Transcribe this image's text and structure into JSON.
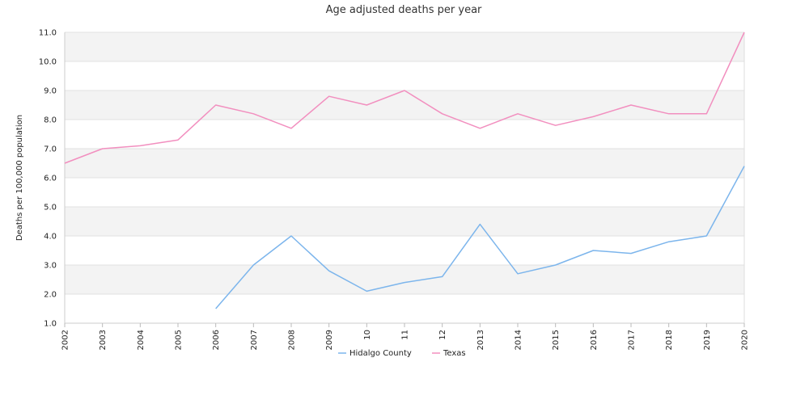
{
  "chart_data": {
    "type": "line",
    "title": "Age adjusted deaths per year",
    "ylabel": "Deaths per 100,000 population",
    "xlabel": "",
    "ylim": [
      1.0,
      11.0
    ],
    "yticks": [
      "1.0",
      "2.0",
      "3.0",
      "4.0",
      "5.0",
      "6.0",
      "7.0",
      "8.0",
      "9.0",
      "10.0",
      "11.0"
    ],
    "categories": [
      "2002",
      "2003",
      "2004",
      "2005",
      "2006",
      "2007",
      "2008",
      "2009",
      "10",
      "11",
      "12",
      "2013",
      "2014",
      "2015",
      "2016",
      "2017",
      "2018",
      "2019",
      "2020"
    ],
    "series": [
      {
        "name": "Hidalgo County",
        "color": "#7cb5ec",
        "values": [
          null,
          null,
          null,
          null,
          1.5,
          3.0,
          4.0,
          2.8,
          2.1,
          2.4,
          2.6,
          4.4,
          2.7,
          3.0,
          3.5,
          3.4,
          3.8,
          4.0,
          6.4
        ]
      },
      {
        "name": "Texas",
        "color": "#f28fbf",
        "values": [
          6.5,
          7.0,
          7.1,
          7.3,
          8.5,
          8.2,
          7.7,
          8.8,
          8.5,
          9.0,
          8.2,
          7.7,
          8.2,
          7.8,
          8.1,
          8.5,
          8.2,
          8.2,
          11.0
        ]
      }
    ],
    "grid": true,
    "legend": "bottom-center",
    "band_colors": [
      "#f3f3f3",
      "#ffffff"
    ],
    "grid_color": "#e2e2e2"
  }
}
